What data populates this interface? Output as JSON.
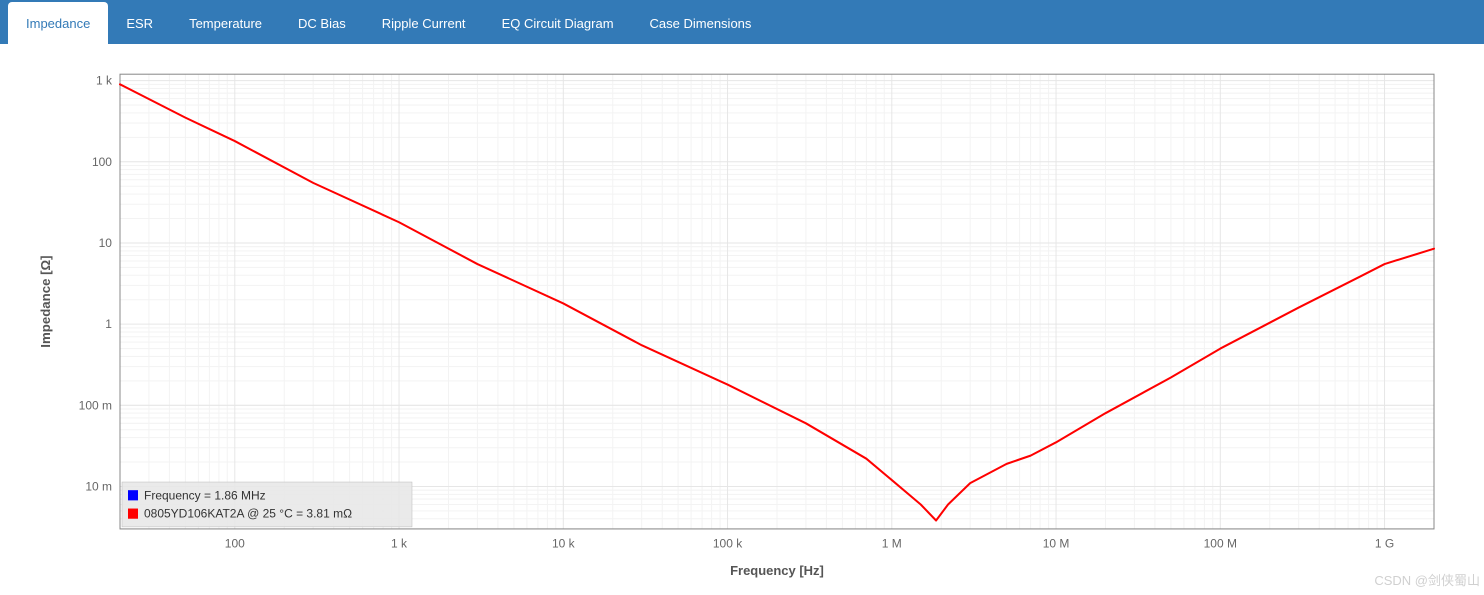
{
  "tabs": {
    "items": [
      {
        "label": "Impedance",
        "active": true
      },
      {
        "label": "ESR",
        "active": false
      },
      {
        "label": "Temperature",
        "active": false
      },
      {
        "label": "DC Bias",
        "active": false
      },
      {
        "label": "Ripple Current",
        "active": false
      },
      {
        "label": "EQ Circuit Diagram",
        "active": false
      },
      {
        "label": "Case Dimensions",
        "active": false
      }
    ],
    "active_bg": "#ffffff",
    "active_color": "#337ab7",
    "inactive_color": "#ffffff",
    "bar_bg": "#337ab7"
  },
  "chart": {
    "type": "line",
    "xlabel": "Frequency [Hz]",
    "ylabel": "Impedance [Ω]",
    "x_scale": "log",
    "y_scale": "log",
    "x_ticks": [
      {
        "value": 100,
        "label": "100"
      },
      {
        "value": 1000,
        "label": "1 k"
      },
      {
        "value": 10000,
        "label": "10 k"
      },
      {
        "value": 100000,
        "label": "100 k"
      },
      {
        "value": 1000000,
        "label": "1 M"
      },
      {
        "value": 10000000,
        "label": "10 M"
      },
      {
        "value": 100000000,
        "label": "100 M"
      },
      {
        "value": 1000000000,
        "label": "1 G"
      }
    ],
    "y_ticks": [
      {
        "value": 0.01,
        "label": "10 m"
      },
      {
        "value": 0.1,
        "label": "100 m"
      },
      {
        "value": 1,
        "label": "1"
      },
      {
        "value": 10,
        "label": "10"
      },
      {
        "value": 100,
        "label": "100"
      },
      {
        "value": 1000,
        "label": "1 k"
      }
    ],
    "xlim": [
      20,
      2000000000
    ],
    "ylim": [
      0.003,
      1200
    ],
    "grid_major_color": "#e6e6e6",
    "grid_minor_color": "#f3f3f3",
    "border_color": "#888888",
    "background_color": "#ffffff",
    "series": [
      {
        "name": "impedance",
        "color": "#ff0000",
        "width": 2,
        "points": [
          [
            20,
            900
          ],
          [
            50,
            350
          ],
          [
            100,
            180
          ],
          [
            300,
            55
          ],
          [
            1000,
            18
          ],
          [
            3000,
            5.5
          ],
          [
            10000,
            1.8
          ],
          [
            30000,
            0.55
          ],
          [
            100000,
            0.18
          ],
          [
            300000,
            0.06
          ],
          [
            700000,
            0.022
          ],
          [
            1000000,
            0.012
          ],
          [
            1500000,
            0.006
          ],
          [
            1860000,
            0.00381
          ],
          [
            2200000,
            0.006
          ],
          [
            3000000,
            0.011
          ],
          [
            5000000,
            0.019
          ],
          [
            7000000,
            0.024
          ],
          [
            10000000,
            0.035
          ],
          [
            20000000,
            0.08
          ],
          [
            50000000,
            0.22
          ],
          [
            100000000,
            0.5
          ],
          [
            300000000,
            1.6
          ],
          [
            700000000,
            3.8
          ],
          [
            1000000000,
            5.5
          ],
          [
            2000000000,
            8.5
          ]
        ]
      }
    ],
    "legend": {
      "position": "bottom-left-inside",
      "bg": "#e6e6e6",
      "items": [
        {
          "swatch_color": "#0000ff",
          "text": "Frequency = 1.86 MHz"
        },
        {
          "swatch_color": "#ff0000",
          "text": "0805YD106KAT2A @ 25 °C = 3.81 mΩ"
        }
      ]
    },
    "label_fontsize": 13,
    "tick_fontsize": 12
  },
  "watermark": "CSDN @剑侠蜀山"
}
